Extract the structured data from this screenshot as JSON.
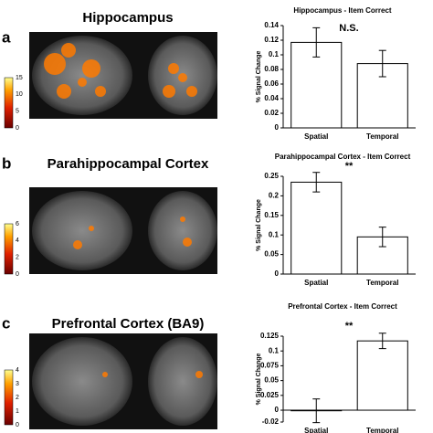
{
  "panels": [
    {
      "label": "a",
      "title": "Hippocampus",
      "colorbar_ticks": [
        15,
        10,
        5,
        0
      ]
    },
    {
      "label": "b",
      "title": "Parahippocampal Cortex",
      "colorbar_ticks": [
        6,
        4,
        2,
        0
      ]
    },
    {
      "label": "c",
      "title": "Prefrontal Cortex (BA9)",
      "colorbar_ticks": [
        4,
        3,
        2,
        1,
        0
      ]
    }
  ],
  "chart_data": [
    {
      "type": "bar",
      "title": "Hippocampus - Item Correct",
      "y_label": "% Signal Change",
      "annotation": "N.S.",
      "categories": [
        "Spatial",
        "Temporal"
      ],
      "values": [
        0.117,
        0.088
      ],
      "errors": [
        0.02,
        0.018
      ],
      "color": "#ffffff",
      "ylim": [
        0,
        0.14
      ],
      "yticks": [
        0,
        0.02,
        0.04,
        0.06,
        0.08,
        0.1,
        0.12,
        0.14
      ]
    },
    {
      "type": "bar",
      "title": "Parahippocampal Cortex - Item Correct",
      "y_label": "% Signal Change",
      "annotation": "**",
      "categories": [
        "Spatial",
        "Temporal"
      ],
      "values": [
        0.235,
        0.095
      ],
      "errors": [
        0.025,
        0.025
      ],
      "color": "#ffffff",
      "ylim": [
        0,
        0.25
      ],
      "yticks": [
        0,
        0.05,
        0.1,
        0.15,
        0.2,
        0.25
      ]
    },
    {
      "type": "bar",
      "title": "Prefrontal Cortex - Item Correct",
      "y_label": "% Signal Change",
      "annotation": "**",
      "categories": [
        "Spatial",
        "Temporal"
      ],
      "values": [
        -0.001,
        0.117
      ],
      "errors": [
        0.02,
        0.013
      ],
      "color": "#ffffff",
      "ylim": [
        -0.02,
        0.125
      ],
      "yticks": [
        -0.02,
        0,
        0.025,
        0.05,
        0.075,
        0.1,
        0.125
      ]
    }
  ]
}
